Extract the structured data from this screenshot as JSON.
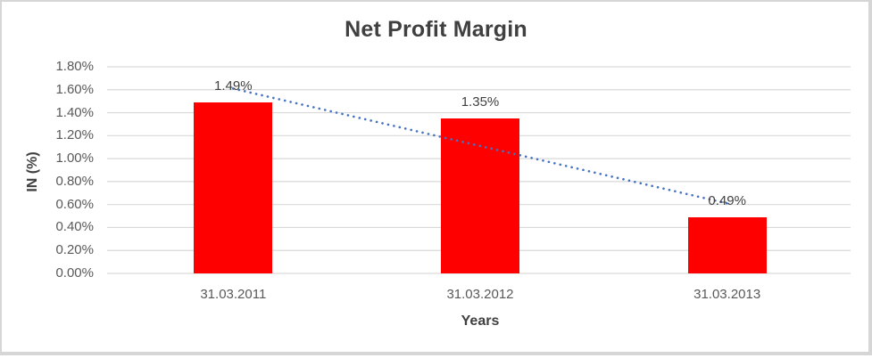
{
  "chart_data": {
    "type": "bar",
    "title": "Net Profit Margin",
    "categories": [
      "31.03.2011",
      "31.03.2012",
      "31.03.2013"
    ],
    "values": [
      1.49,
      1.35,
      0.49
    ],
    "data_labels": [
      "1.49%",
      "1.35%",
      "0.49%"
    ],
    "xlabel": "Years",
    "ylabel": "IN (%)",
    "ylim": [
      0,
      1.8
    ],
    "ytick_step": 0.2,
    "ytick_labels": [
      "0.00%",
      "0.20%",
      "0.40%",
      "0.60%",
      "0.80%",
      "1.00%",
      "1.20%",
      "1.40%",
      "1.60%",
      "1.80%"
    ],
    "grid": true,
    "legend": false,
    "bar_color": "#FF0000",
    "trendline": {
      "type": "linear",
      "style": "dotted",
      "color": "#4472C4"
    },
    "colors": {
      "title_text": "#404040",
      "axis_text": "#595959",
      "gridline": "#D9D9D9",
      "frame_border": "#D6D6D6",
      "background": "#FFFFFF"
    }
  }
}
